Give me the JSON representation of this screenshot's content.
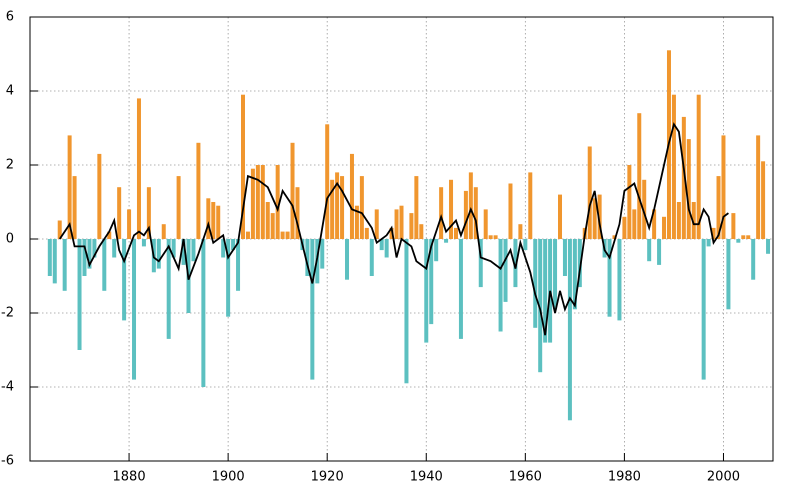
{
  "chart_data": [
    {
      "type": "bar",
      "x": [
        1864,
        1865,
        1866,
        1867,
        1868,
        1869,
        1870,
        1871,
        1872,
        1873,
        1874,
        1875,
        1876,
        1877,
        1878,
        1879,
        1880,
        1881,
        1882,
        1883,
        1884,
        1885,
        1886,
        1887,
        1888,
        1889,
        1890,
        1891,
        1892,
        1893,
        1894,
        1895,
        1896,
        1897,
        1898,
        1899,
        1900,
        1901,
        1902,
        1903,
        1904,
        1905,
        1906,
        1907,
        1908,
        1909,
        1910,
        1911,
        1912,
        1913,
        1914,
        1915,
        1916,
        1917,
        1918,
        1919,
        1920,
        1921,
        1922,
        1923,
        1924,
        1925,
        1926,
        1927,
        1928,
        1929,
        1930,
        1931,
        1932,
        1933,
        1934,
        1935,
        1936,
        1937,
        1938,
        1939,
        1940,
        1941,
        1942,
        1943,
        1944,
        1945,
        1946,
        1947,
        1948,
        1949,
        1950,
        1951,
        1952,
        1953,
        1954,
        1955,
        1956,
        1957,
        1958,
        1959,
        1960,
        1961,
        1962,
        1963,
        1964,
        1965,
        1966,
        1967,
        1968,
        1969,
        1970,
        1971,
        1972,
        1973,
        1974,
        1975,
        1976,
        1977,
        1978,
        1979,
        1980,
        1981,
        1982,
        1983,
        1984,
        1985,
        1986,
        1987,
        1988,
        1989,
        1990,
        1991,
        1992,
        1993,
        1994,
        1995,
        1996,
        1997,
        1998,
        1999,
        2000,
        2001,
        2002,
        2003,
        2004,
        2005,
        2006,
        2007,
        2008,
        2009
      ],
      "values": [
        -1.0,
        -1.2,
        0.5,
        -1.4,
        2.8,
        1.7,
        -3.0,
        -1.0,
        -0.8,
        -0.5,
        2.3,
        -1.4,
        0.2,
        -0.5,
        1.4,
        -2.2,
        0.8,
        -3.8,
        3.8,
        -0.2,
        1.4,
        -0.9,
        -0.8,
        0.4,
        -2.7,
        -0.5,
        1.7,
        -0.7,
        -2.0,
        -0.6,
        2.6,
        -4.0,
        1.1,
        1.0,
        0.9,
        -0.5,
        -2.1,
        -0.3,
        -1.4,
        3.9,
        0.2,
        1.9,
        2.0,
        2.0,
        1.0,
        0.7,
        2.0,
        0.2,
        0.2,
        2.6,
        1.4,
        -0.3,
        -1.0,
        -3.8,
        -1.2,
        -0.8,
        3.1,
        1.6,
        1.8,
        1.7,
        -1.1,
        2.3,
        0.9,
        1.7,
        0.3,
        -1.0,
        0.8,
        -0.3,
        -0.5,
        0.3,
        0.8,
        0.9,
        -3.9,
        0.7,
        1.7,
        0.4,
        -2.8,
        -2.3,
        -0.6,
        1.4,
        -0.1,
        1.6,
        0.3,
        -2.7,
        1.3,
        1.8,
        1.4,
        -1.3,
        0.8,
        0.1,
        0.1,
        -2.5,
        -1.7,
        1.5,
        -1.3,
        0.4,
        -0.3,
        1.8,
        -2.4,
        -3.6,
        -2.8,
        -2.8,
        -1.9,
        1.2,
        -1.0,
        -4.9,
        -1.9,
        -1.3,
        0.3,
        2.5,
        1.1,
        1.2,
        -0.5,
        -2.1,
        0.1,
        -2.2,
        0.6,
        2.0,
        0.8,
        3.4,
        1.6,
        -0.6,
        0.8,
        -0.7,
        0.6,
        5.1,
        3.9,
        1.0,
        3.3,
        2.7,
        1.0,
        3.9,
        -3.8,
        -0.2,
        0.3,
        1.7,
        2.8,
        -1.9,
        0.7,
        -0.1,
        0.1,
        0.1,
        -1.1,
        2.8,
        2.1,
        -0.4
      ],
      "positive_color": "#f0962e",
      "negative_color": "#5cc0c0",
      "xlim": [
        1860,
        2010
      ],
      "ylim": [
        -6,
        6
      ],
      "xticks": [
        1880,
        1900,
        1920,
        1940,
        1960,
        1980,
        2000
      ],
      "yticks": [
        -6,
        -4,
        -2,
        0,
        2,
        4,
        6
      ],
      "grid": true
    },
    {
      "type": "line",
      "x": [
        1866,
        1868,
        1869,
        1871,
        1872,
        1874,
        1876,
        1877,
        1878,
        1879,
        1881,
        1882,
        1883,
        1884,
        1885,
        1886,
        1888,
        1890,
        1891,
        1892,
        1894,
        1896,
        1897,
        1899,
        1900,
        1902,
        1904,
        1906,
        1908,
        1910,
        1911,
        1913,
        1914,
        1916,
        1917,
        1918,
        1920,
        1922,
        1923,
        1925,
        1927,
        1928,
        1929,
        1930,
        1932,
        1933,
        1934,
        1935,
        1937,
        1938,
        1940,
        1941,
        1943,
        1944,
        1946,
        1947,
        1949,
        1950,
        1951,
        1953,
        1955,
        1957,
        1958,
        1959,
        1961,
        1962,
        1963,
        1964,
        1965,
        1966,
        1967,
        1968,
        1969,
        1970,
        1972,
        1973,
        1974,
        1975,
        1976,
        1977,
        1979,
        1980,
        1982,
        1983,
        1985,
        1986,
        1988,
        1989,
        1990,
        1991,
        1992,
        1993,
        1994,
        1995,
        1996,
        1997,
        1998,
        1999,
        2000,
        2001
      ],
      "values": [
        0.0,
        0.4,
        -0.2,
        -0.2,
        -0.7,
        -0.2,
        0.2,
        0.5,
        -0.3,
        -0.6,
        0.1,
        0.2,
        0.1,
        0.3,
        -0.5,
        -0.6,
        -0.2,
        -0.8,
        0.0,
        -1.1,
        -0.4,
        0.4,
        -0.1,
        0.1,
        -0.5,
        -0.1,
        1.7,
        1.6,
        1.4,
        0.8,
        1.3,
        0.9,
        0.4,
        -0.7,
        -1.2,
        -0.5,
        1.1,
        1.5,
        1.3,
        0.8,
        0.7,
        0.5,
        0.3,
        -0.1,
        0.1,
        0.3,
        -0.5,
        0.0,
        -0.2,
        -0.6,
        -0.8,
        -0.2,
        0.6,
        0.2,
        0.5,
        0.1,
        0.8,
        0.5,
        -0.5,
        -0.6,
        -0.8,
        -0.3,
        -0.8,
        -0.1,
        -0.9,
        -1.5,
        -1.9,
        -2.6,
        -1.4,
        -2.0,
        -1.4,
        -1.9,
        -1.6,
        -1.8,
        0.1,
        0.9,
        1.3,
        0.4,
        -0.3,
        -0.5,
        0.4,
        1.3,
        1.5,
        1.1,
        0.3,
        0.8,
        2.0,
        2.6,
        3.1,
        2.9,
        1.9,
        0.8,
        0.4,
        0.4,
        0.8,
        0.6,
        -0.1,
        0.1,
        0.6,
        0.7
      ],
      "color": "#000000",
      "xlim": [
        1860,
        2010
      ],
      "ylim": [
        -6,
        6
      ]
    }
  ]
}
